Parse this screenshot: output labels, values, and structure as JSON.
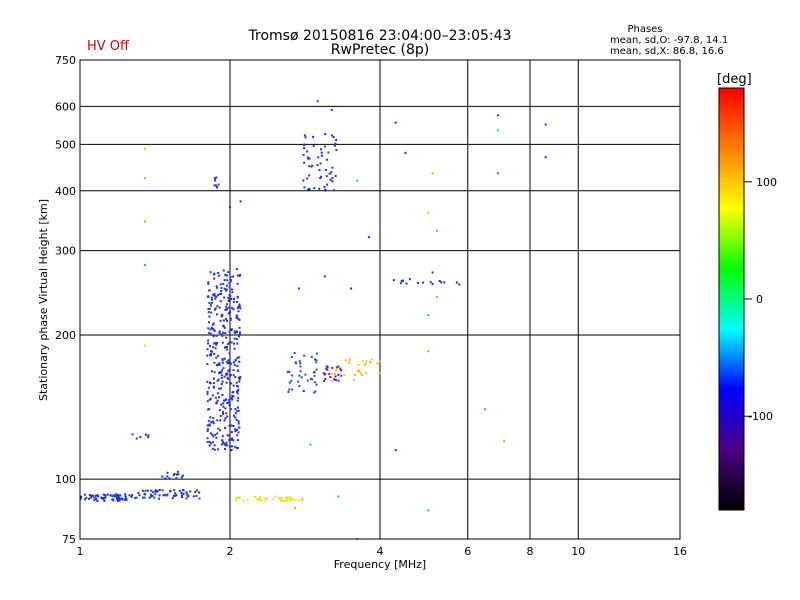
{
  "header": {
    "title": "Tromsø 20150816 23:04:00–23:05:43",
    "subtitle": "RwPretec (8p)",
    "status": "HV Off",
    "status_color": "#d40000",
    "phase_title": "Phases",
    "phase_o": "mean, sd,O: -97.8, 14.1",
    "phase_x": "mean, sd,X: 86.8, 16.6"
  },
  "chart_data": {
    "type": "scatter",
    "title": "Tromsø 20150816 23:04:00–23:05:43",
    "subtitle": "RwPretec (8p)",
    "xlabel": "Frequency [MHz]",
    "ylabel": "Stationary phase Virtual Height [km]",
    "xscale": "log2",
    "yscale": "log",
    "xlim": [
      1,
      16
    ],
    "ylim": [
      75,
      750
    ],
    "grid": true,
    "x_ticks": [
      1,
      2,
      4,
      6,
      8,
      10,
      16
    ],
    "x_grid": [
      2,
      4,
      6,
      8,
      10
    ],
    "y_ticks": [
      75,
      100,
      200,
      300,
      400,
      500,
      600,
      750
    ],
    "y_grid": [
      100,
      200,
      300,
      400,
      500,
      600
    ],
    "colorbar": {
      "label": "[deg]",
      "ticks": [
        100,
        0,
        -100
      ],
      "range": [
        -180,
        180
      ],
      "stops": [
        "#000000",
        "#4b0082",
        "#0000ff",
        "#00ffff",
        "#00ff00",
        "#ffff00",
        "#ff8000",
        "#ff0000"
      ]
    },
    "clusters": [
      {
        "x": [
          1.0,
          1.3
        ],
        "y": [
          90,
          93
        ],
        "n": 70,
        "color": "#1e2fe6"
      },
      {
        "x": [
          1.3,
          1.75
        ],
        "y": [
          91,
          95
        ],
        "n": 60,
        "color": "#1e2fe6"
      },
      {
        "x": [
          1.45,
          1.65
        ],
        "y": [
          100,
          104
        ],
        "n": 14,
        "color": "#1e2fe6"
      },
      {
        "x": [
          1.27,
          1.4
        ],
        "y": [
          121,
          124
        ],
        "n": 6,
        "color": "#1e2fe6"
      },
      {
        "x": [
          1.8,
          2.1
        ],
        "y": [
          115,
          275
        ],
        "n": 380,
        "color": "#1e2fe6"
      },
      {
        "x": [
          1.85,
          1.9
        ],
        "y": [
          405,
          430
        ],
        "n": 8,
        "color": "#1e2fe6"
      },
      {
        "x": [
          2.6,
          3.0
        ],
        "y": [
          150,
          185
        ],
        "n": 40,
        "color": "#1e4be6"
      },
      {
        "x": [
          2.8,
          3.3
        ],
        "y": [
          400,
          530
        ],
        "n": 60,
        "color": "#1e2fe6"
      },
      {
        "x": [
          3.05,
          3.35
        ],
        "y": [
          160,
          172
        ],
        "n": 24,
        "color": "#5a1ec8"
      },
      {
        "x": [
          2.0,
          2.8
        ],
        "y": [
          90,
          92
        ],
        "n": 45,
        "color": "#e6e620"
      },
      {
        "x": [
          3.2,
          4.0
        ],
        "y": [
          160,
          180
        ],
        "n": 30,
        "color": "#f0c020"
      },
      {
        "x": [
          4.0,
          5.8
        ],
        "y": [
          255,
          262
        ],
        "n": 16,
        "color": "#1e2fe6"
      }
    ],
    "points": [
      {
        "x": 3.0,
        "y": 615,
        "color": "#1e2fe6"
      },
      {
        "x": 3.2,
        "y": 590,
        "color": "#1e2fe6"
      },
      {
        "x": 4.3,
        "y": 555,
        "color": "#1e2fe6"
      },
      {
        "x": 4.5,
        "y": 480,
        "color": "#1e2fe6"
      },
      {
        "x": 6.9,
        "y": 575,
        "color": "#1e2fe6"
      },
      {
        "x": 6.9,
        "y": 535,
        "color": "#20c8e6"
      },
      {
        "x": 6.9,
        "y": 435,
        "color": "#e63c1e"
      },
      {
        "x": 8.6,
        "y": 550,
        "color": "#1e2fe6"
      },
      {
        "x": 8.6,
        "y": 470,
        "color": "#1e2fe6"
      },
      {
        "x": 1.35,
        "y": 490,
        "color": "#e6c81e"
      },
      {
        "x": 1.35,
        "y": 425,
        "color": "#f09020"
      },
      {
        "x": 1.35,
        "y": 345,
        "color": "#f09020"
      },
      {
        "x": 1.35,
        "y": 280,
        "color": "#20a0e6"
      },
      {
        "x": 1.35,
        "y": 190,
        "color": "#e6c81e"
      },
      {
        "x": 2.0,
        "y": 370,
        "color": "#1e2fe6"
      },
      {
        "x": 2.1,
        "y": 380,
        "color": "#1e2fe6"
      },
      {
        "x": 3.6,
        "y": 420,
        "color": "#20c878"
      },
      {
        "x": 3.5,
        "y": 250,
        "color": "#1e2fe6"
      },
      {
        "x": 3.8,
        "y": 320,
        "color": "#1e2fe6"
      },
      {
        "x": 3.1,
        "y": 265,
        "color": "#1e2fe6"
      },
      {
        "x": 2.75,
        "y": 250,
        "color": "#1e2fe6"
      },
      {
        "x": 5.0,
        "y": 360,
        "color": "#e6c81e"
      },
      {
        "x": 5.2,
        "y": 330,
        "color": "#20c8e6"
      },
      {
        "x": 5.1,
        "y": 435,
        "color": "#f0a020"
      },
      {
        "x": 5.1,
        "y": 270,
        "color": "#1e2fe6"
      },
      {
        "x": 5.2,
        "y": 240,
        "color": "#f09020"
      },
      {
        "x": 5.0,
        "y": 220,
        "color": "#20c878"
      },
      {
        "x": 5.0,
        "y": 185,
        "color": "#f09020"
      },
      {
        "x": 4.3,
        "y": 115,
        "color": "#1e2fe6"
      },
      {
        "x": 6.5,
        "y": 140,
        "color": "#e66020"
      },
      {
        "x": 7.1,
        "y": 120,
        "color": "#f0a020"
      },
      {
        "x": 5.0,
        "y": 86,
        "color": "#20c878"
      },
      {
        "x": 3.6,
        "y": 75,
        "color": "#20c8e6"
      },
      {
        "x": 2.9,
        "y": 118,
        "color": "#20c878"
      },
      {
        "x": 3.3,
        "y": 92,
        "color": "#20c878"
      },
      {
        "x": 2.7,
        "y": 87,
        "color": "#f0a020"
      }
    ]
  }
}
